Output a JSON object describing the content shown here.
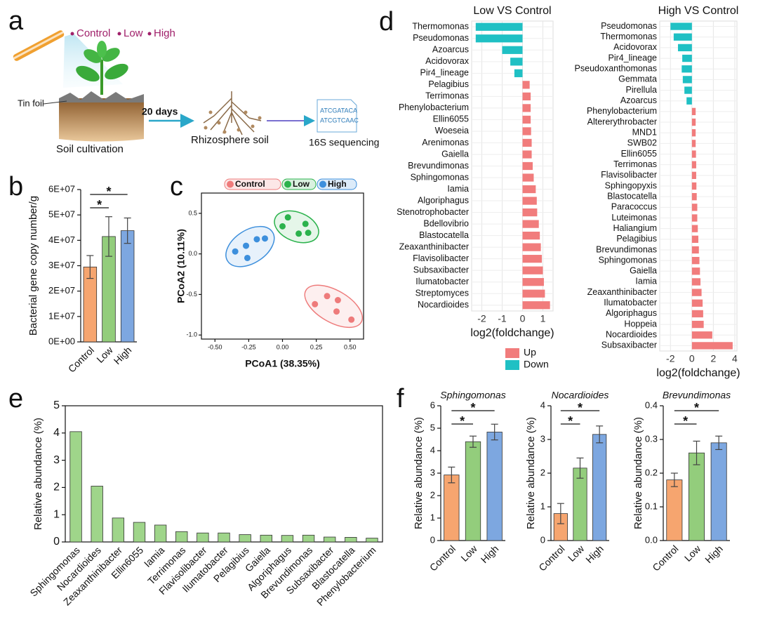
{
  "panels": [
    "a",
    "b",
    "c",
    "d",
    "e",
    "f"
  ],
  "schematic": {
    "treatments": [
      "Control",
      "Low",
      "High"
    ],
    "tin_foil": "Tin foil",
    "step1": "Soil cultivation",
    "days": "20 days",
    "step2": "Rhizosphere soil",
    "seq": [
      "ATCGATACA",
      "ATCGTCAAC"
    ],
    "step3": "16S sequencing"
  },
  "chart_data": [
    {
      "type": "bar",
      "categories": [
        "Control",
        "Low",
        "High"
      ],
      "values": [
        29500000,
        41500000,
        43800000
      ],
      "errors": [
        4500000,
        7800000,
        5000000
      ],
      "colors": [
        "#f6a56f",
        "#93cd7c",
        "#7da7e0"
      ],
      "ylim": [
        0,
        60000000
      ],
      "yticks": [
        {
          "value": 0,
          "label": "0E+00"
        },
        {
          "value": 10000000,
          "label": "1E+07"
        },
        {
          "value": 20000000,
          "label": "2E+07"
        },
        {
          "value": 30000000,
          "label": "3E+07"
        },
        {
          "value": 40000000,
          "label": "4E+07"
        },
        {
          "value": 50000000,
          "label": "5E+07"
        },
        {
          "value": 60000000,
          "label": "6E+07"
        }
      ],
      "ylabel": "Bacterial gene copy number/g",
      "annotations": [
        "*",
        "*"
      ]
    },
    {
      "type": "scatter",
      "xlabel": "PCoA1 (38.35%)",
      "ylabel": "PCoA2 (10.11%)",
      "xlim": [
        -0.6,
        0.6
      ],
      "xticks": [
        {
          "value": -0.5,
          "label": "-0.50"
        },
        -0.25,
        {
          "value": 0,
          "label": "0.00"
        },
        0.25,
        {
          "value": 0.5,
          "label": "0.50"
        }
      ],
      "ylim": [
        -1.05,
        0.75
      ],
      "yticks": [
        {
          "value": -1,
          "label": "-1.0"
        },
        -0.5,
        {
          "value": 0,
          "label": "0.0"
        },
        0.5
      ],
      "series": [
        {
          "name": "Control",
          "color": "#ee7b7b",
          "x": [
            0.33,
            0.41,
            0.24,
            0.4,
            0.51
          ],
          "y": [
            -0.52,
            -0.57,
            -0.62,
            -0.71,
            -0.81
          ]
        },
        {
          "name": "Low",
          "color": "#2bb24c",
          "x": [
            0.04,
            0.17,
            0.0,
            0.12,
            0.19
          ],
          "y": [
            0.45,
            0.37,
            0.34,
            0.25,
            0.26
          ]
        },
        {
          "name": "High",
          "color": "#3d8fdc",
          "x": [
            -0.27,
            -0.19,
            -0.13,
            -0.35,
            -0.26
          ],
          "y": [
            0.1,
            0.18,
            0.19,
            0.03,
            -0.05
          ]
        }
      ]
    },
    {
      "type": "hbar",
      "title": "Low VS Control",
      "xlabel": "log2(foldchange)",
      "xlim": [
        -2.5,
        1.5
      ],
      "xticks": [
        -2,
        -1,
        0,
        1
      ],
      "grid": true,
      "legend": [
        {
          "name": "Up",
          "color": "#f17c7c"
        },
        {
          "name": "Down",
          "color": "#1fc0c4"
        }
      ],
      "categories": [
        "Thermomonas",
        "Pseudomonas",
        "Azoarcus",
        "Acidovorax",
        "Pir4_lineage",
        "Pelagibius",
        "Terrimonas",
        "Phenylobacterium",
        "Ellin6055",
        "Woeseia",
        "Arenimonas",
        "Gaiella",
        "Brevundimonas",
        "Sphingomonas",
        "Iamia",
        "Algoriphagus",
        "Stenotrophobacter",
        "Bdellovibrio",
        "Blastocatella",
        "Zeaxanthinibacter",
        "Flavisolibacter",
        "Subsaxibacter",
        "Ilumatobacter",
        "Streptomyces",
        "Nocardioides"
      ],
      "values": [
        -2.3,
        -2.3,
        -1.0,
        -0.6,
        -0.4,
        0.35,
        0.4,
        0.4,
        0.4,
        0.42,
        0.45,
        0.45,
        0.5,
        0.55,
        0.65,
        0.7,
        0.72,
        0.8,
        0.85,
        0.9,
        0.95,
        1.0,
        1.05,
        1.1,
        1.35
      ]
    },
    {
      "type": "hbar",
      "title": "High VS Control",
      "xlabel": "log2(foldchange)",
      "xlim": [
        -3,
        4.2
      ],
      "xticks": [
        -2,
        0,
        2,
        4
      ],
      "grid": true,
      "categories": [
        "Pseudomonas",
        "Thermomonas",
        "Acidovorax",
        "Pir4_lineage",
        "Pseudoxanthomonas",
        "Gemmata",
        "Pirellula",
        "Azoarcus",
        "Phenylobacterium",
        "Altererythrobacter",
        "MND1",
        "SWB02",
        "Ellin6055",
        "Terrimonas",
        "Flavisolibacter",
        "Sphingopyxis",
        "Blastocatella",
        "Paracoccus",
        "Luteimonas",
        "Haliangium",
        "Pelagibius",
        "Brevundimonas",
        "Sphingomonas",
        "Gaiella",
        "Iamia",
        "Zeaxanthinibacter",
        "Ilumatobacter",
        "Algoriphagus",
        "Hoppeia",
        "Nocardioides",
        "Subsaxibacter"
      ],
      "values": [
        -2.0,
        -1.7,
        -1.3,
        -0.9,
        -0.95,
        -0.85,
        -0.7,
        -0.5,
        0.35,
        0.35,
        0.35,
        0.35,
        0.38,
        0.4,
        0.4,
        0.42,
        0.45,
        0.5,
        0.5,
        0.55,
        0.6,
        0.65,
        0.7,
        0.75,
        0.8,
        0.9,
        1.0,
        1.05,
        1.1,
        1.9,
        3.8
      ]
    },
    {
      "type": "bar",
      "ylabel": "Relative abundance (%)",
      "color": "#9fd58a",
      "ylim": [
        0,
        5
      ],
      "yticks": [
        0,
        1,
        2,
        3,
        4,
        5
      ],
      "categories": [
        "Sphingomonas",
        "Nocardioides",
        "Zeaxanthinibacter",
        "Ellin6055",
        "Iamia",
        "Terrimonas",
        "Flavisolibacter",
        "Ilumatobacter",
        "Pelagibius",
        "Gaiella",
        "Algoriphagus",
        "Brevundimonas",
        "Subsaxibacter",
        "Blastocatella",
        "Phenylobacterium"
      ],
      "values": [
        4.05,
        2.05,
        0.88,
        0.72,
        0.62,
        0.38,
        0.33,
        0.33,
        0.27,
        0.25,
        0.24,
        0.25,
        0.18,
        0.17,
        0.14
      ]
    },
    {
      "type": "bar",
      "title": "Sphingomonas",
      "ylabel": "Relative abundance (%)",
      "categories": [
        "Control",
        "Low",
        "High"
      ],
      "values": [
        2.92,
        4.4,
        4.83
      ],
      "errors": [
        0.35,
        0.25,
        0.35
      ],
      "colors": [
        "#f6a56f",
        "#93cd7c",
        "#7da7e0"
      ],
      "ylim": [
        0,
        6
      ],
      "yticks": [
        0,
        1,
        2,
        3,
        4,
        5,
        6
      ],
      "annotations": [
        "*",
        "*"
      ]
    },
    {
      "type": "bar",
      "title": "Nocardioides",
      "ylabel": "Relative abundance (%)",
      "categories": [
        "Control",
        "Low",
        "High"
      ],
      "values": [
        0.8,
        2.15,
        3.15
      ],
      "errors": [
        0.3,
        0.3,
        0.25
      ],
      "colors": [
        "#f6a56f",
        "#93cd7c",
        "#7da7e0"
      ],
      "ylim": [
        0,
        4
      ],
      "yticks": [
        0,
        1,
        2,
        3,
        4
      ],
      "annotations": [
        "*",
        "*"
      ]
    },
    {
      "type": "bar",
      "title": "Brevundimonas",
      "ylabel": "Relative abundance (%)",
      "categories": [
        "Control",
        "Low",
        "High"
      ],
      "values": [
        0.18,
        0.26,
        0.29
      ],
      "errors": [
        0.02,
        0.035,
        0.02
      ],
      "colors": [
        "#f6a56f",
        "#93cd7c",
        "#7da7e0"
      ],
      "ylim": [
        0,
        0.4
      ],
      "yticks": [
        {
          "value": 0,
          "label": "0.0"
        },
        0.1,
        0.2,
        0.3,
        0.4
      ],
      "annotations": [
        "*",
        "*"
      ]
    }
  ]
}
